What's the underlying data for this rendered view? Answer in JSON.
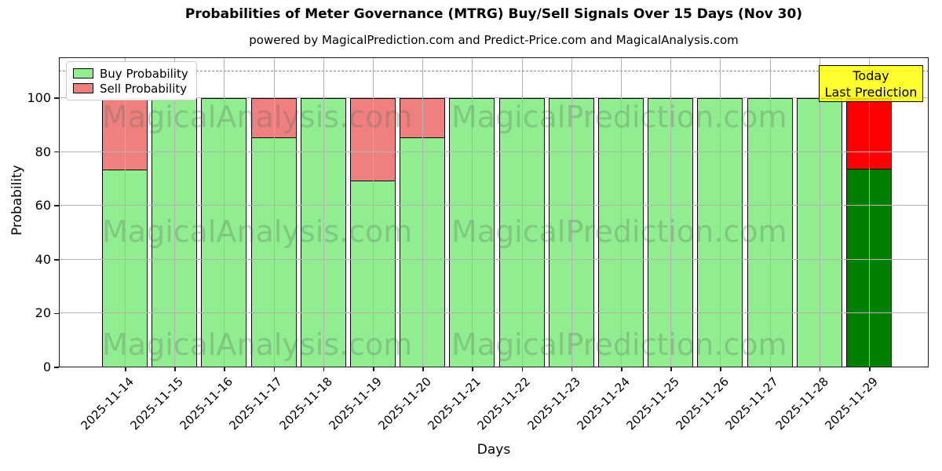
{
  "title": "Probabilities of Meter Governance (MTRG) Buy/Sell Signals Over 15 Days (Nov 30)",
  "subtitle": "powered by MagicalPrediction.com and Predict-Price.com and MagicalAnalysis.com",
  "axes": {
    "xlabel": "Days",
    "ylabel": "Probability",
    "yticks": [
      0,
      20,
      40,
      60,
      80,
      100
    ],
    "ylim": [
      0,
      115
    ],
    "dashed_line_y": 110,
    "grid": true
  },
  "legend": {
    "items": [
      {
        "label": "Buy Probability",
        "color": "#90EE90"
      },
      {
        "label": "Sell Probability",
        "color": "#F08080"
      }
    ]
  },
  "annotation": {
    "line1": "Today",
    "line2": "Last Prediction",
    "bg_color": "#FFFF00"
  },
  "watermarks": {
    "left": "MagicalAnalysis.com",
    "right": "MagicalPrediction.com"
  },
  "colors": {
    "buy": "#90EE90",
    "sell": "#F08080",
    "buy_today": "#008000",
    "sell_today": "#FF0000",
    "bar_edge": "#000000",
    "grid": "#b3b3b3",
    "annotation_bg": "#FFFF00"
  },
  "chart_data": {
    "type": "bar",
    "stacked": true,
    "categories": [
      "2025-11-14",
      "2025-11-15",
      "2025-11-16",
      "2025-11-17",
      "2025-11-18",
      "2025-11-19",
      "2025-11-20",
      "2025-11-21",
      "2025-11-22",
      "2025-11-23",
      "2025-11-24",
      "2025-11-25",
      "2025-11-26",
      "2025-11-27",
      "2025-11-28",
      "2025-11-29"
    ],
    "series": [
      {
        "name": "Buy Probability",
        "values": [
          73.5,
          100,
          100,
          85.7,
          100,
          69.5,
          85.7,
          100,
          100,
          100,
          100,
          100,
          100,
          100,
          100,
          74
        ]
      },
      {
        "name": "Sell Probability",
        "values": [
          26.5,
          0,
          0,
          14.3,
          0,
          30.5,
          14.3,
          0,
          0,
          0,
          0,
          0,
          0,
          0,
          0,
          26
        ]
      }
    ],
    "today_index": 15,
    "legend_position": "upper left"
  }
}
